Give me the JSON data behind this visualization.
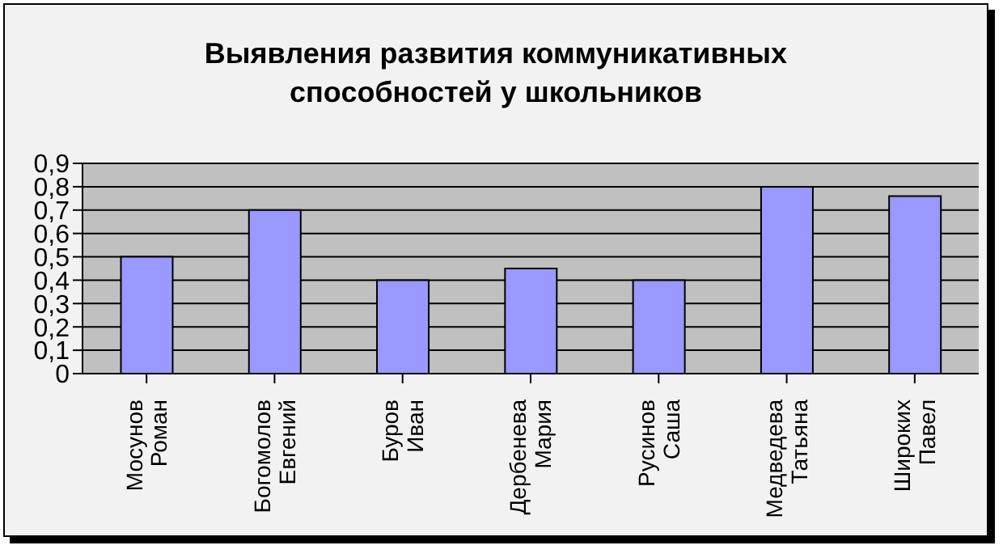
{
  "chart_data": {
    "type": "bar",
    "title": "Выявления развития коммуникативных способностей у школьников",
    "categories": [
      "Мосунов Роман",
      "Богомолов Евгений",
      "Буров Иван",
      "Дербенева Мария",
      "Русинов Саша",
      "Медведева Татьяна",
      "Широких Павел"
    ],
    "values": [
      0.5,
      0.7,
      0.4,
      0.45,
      0.4,
      0.8,
      0.76
    ],
    "color": "#9999ff",
    "ylim": [
      0,
      0.9
    ],
    "yticks": [
      {
        "value": 0,
        "label": "0"
      },
      {
        "value": 0.1,
        "label": "0,1"
      },
      {
        "value": 0.2,
        "label": "0,2"
      },
      {
        "value": 0.3,
        "label": "0,3"
      },
      {
        "value": 0.4,
        "label": "0,4"
      },
      {
        "value": 0.5,
        "label": "0,5"
      },
      {
        "value": 0.6,
        "label": "0,6"
      },
      {
        "value": 0.7,
        "label": "0,7"
      },
      {
        "value": 0.8,
        "label": "0,8"
      },
      {
        "value": 0.9,
        "label": "0,9"
      }
    ],
    "grid": "y"
  }
}
